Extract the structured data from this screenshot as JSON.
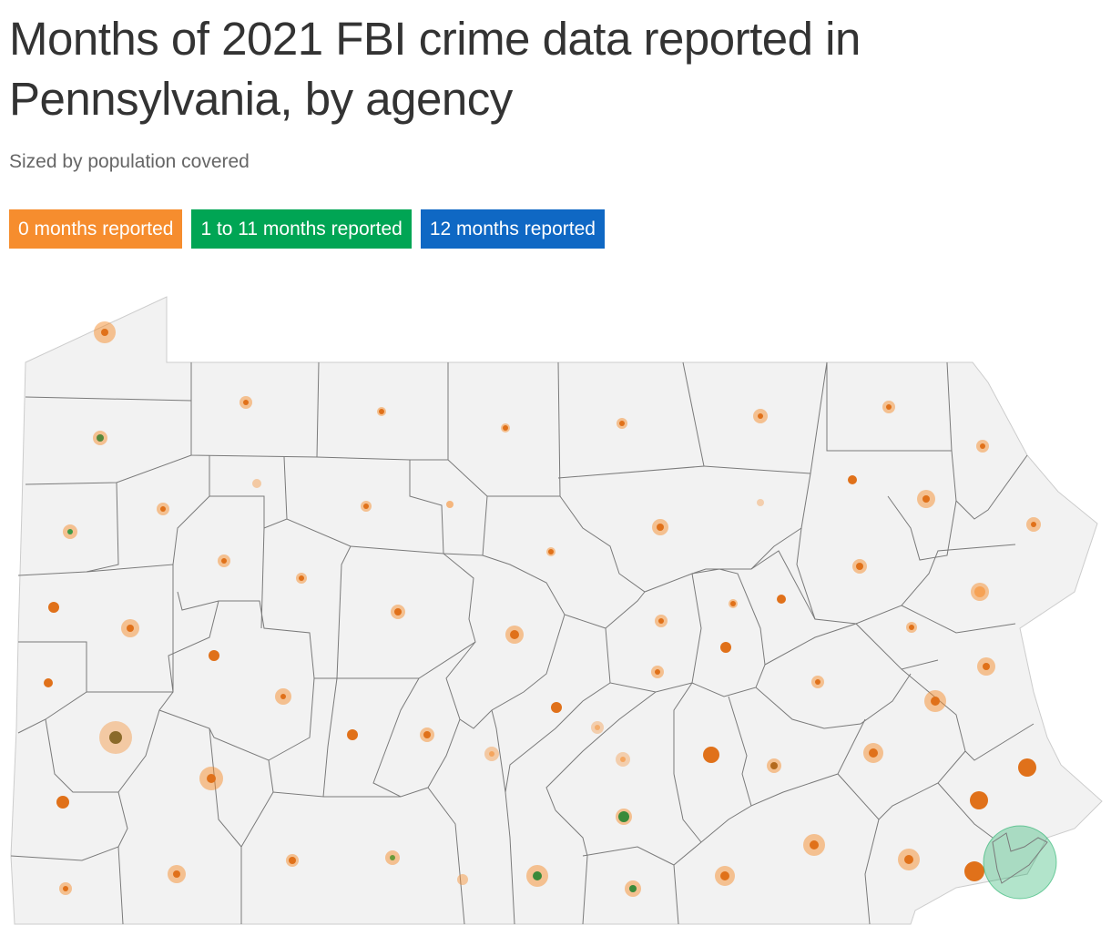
{
  "header": {
    "title": "Months of 2021 FBI crime data reported in Pennsylvania, by agency",
    "subtitle": "Sized by population covered"
  },
  "legend": [
    {
      "label": "0 months reported",
      "color": "#f68d2e"
    },
    {
      "label": "1 to 11 months reported",
      "color": "#00a554"
    },
    {
      "label": "12 months reported",
      "color": "#0f68c4"
    }
  ],
  "colors": {
    "state_fill": "#f2f2f2",
    "county_border": "#7a7a7a",
    "zero_months": "#f68d2e",
    "partial_months": "#00a554",
    "full_months": "#0f68c4"
  }
}
